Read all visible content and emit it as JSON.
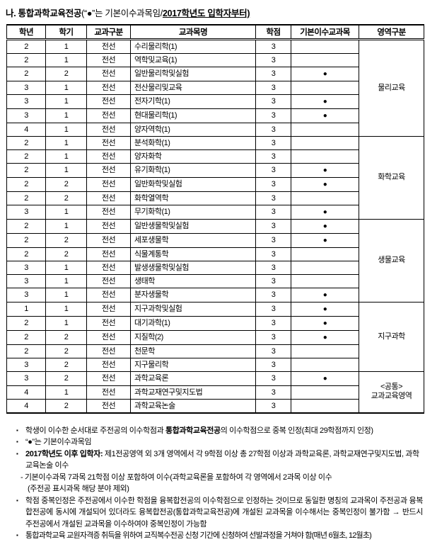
{
  "title": {
    "parts": [
      {
        "t": "나. 통합과학교육전공",
        "b": true
      },
      {
        "t": "(“●”는 기본이수과목임/"
      },
      {
        "t": "2017학년도 입학자부터)",
        "b": true,
        "u": true
      }
    ]
  },
  "table": {
    "dot": "●",
    "headers": [
      "학년",
      "학기",
      "교과구분",
      "교과목명",
      "학점",
      "기본이수교과목",
      "영역구분"
    ],
    "groups": [
      {
        "area": "물리교육",
        "rows": [
          [
            "2",
            "1",
            "전선",
            "수리물리학(1)",
            "3",
            false
          ],
          [
            "2",
            "1",
            "전선",
            "역학및교육(1)",
            "3",
            false
          ],
          [
            "2",
            "2",
            "전선",
            "일반물리학및실험",
            "3",
            true
          ],
          [
            "3",
            "1",
            "전선",
            "전산물리및교육",
            "3",
            false
          ],
          [
            "3",
            "1",
            "전선",
            "전자기학(1)",
            "3",
            true
          ],
          [
            "3",
            "1",
            "전선",
            "현대물리학(1)",
            "3",
            true
          ],
          [
            "4",
            "1",
            "전선",
            "양자역학(1)",
            "3",
            false
          ]
        ]
      },
      {
        "area": "화학교육",
        "rows": [
          [
            "2",
            "1",
            "전선",
            "분석화학(1)",
            "3",
            false
          ],
          [
            "2",
            "1",
            "전선",
            "양자화학",
            "3",
            false
          ],
          [
            "2",
            "1",
            "전선",
            "유기화학(1)",
            "3",
            true
          ],
          [
            "2",
            "2",
            "전선",
            "일반화학및실험",
            "3",
            true
          ],
          [
            "2",
            "2",
            "전선",
            "화학열역학",
            "3",
            false
          ],
          [
            "3",
            "1",
            "전선",
            "무기화학(1)",
            "3",
            true
          ]
        ]
      },
      {
        "area": "생물교육",
        "rows": [
          [
            "2",
            "1",
            "전선",
            "일반생물학및실험",
            "3",
            true
          ],
          [
            "2",
            "2",
            "전선",
            "세포생물학",
            "3",
            true
          ],
          [
            "2",
            "2",
            "전선",
            "식물계통학",
            "3",
            false
          ],
          [
            "3",
            "1",
            "전선",
            "발생생물학및실험",
            "3",
            false
          ],
          [
            "3",
            "1",
            "전선",
            "생태학",
            "3",
            false
          ],
          [
            "3",
            "1",
            "전선",
            "분자생물학",
            "3",
            true
          ]
        ]
      },
      {
        "area": "지구과학",
        "rows": [
          [
            "1",
            "1",
            "전선",
            "지구과학및실험",
            "3",
            true
          ],
          [
            "2",
            "1",
            "전선",
            "대기과학(1)",
            "3",
            true
          ],
          [
            "2",
            "2",
            "전선",
            "지질학(2)",
            "3",
            true
          ],
          [
            "2",
            "2",
            "전선",
            "천문학",
            "3",
            false
          ],
          [
            "3",
            "2",
            "전선",
            "지구물리학",
            "3",
            false
          ]
        ]
      },
      {
        "area": "<공통>\n교과교육영역",
        "rows": [
          [
            "3",
            "2",
            "전선",
            "과학교육론",
            "3",
            true
          ],
          [
            "4",
            "1",
            "전선",
            "과학교재연구및지도법",
            "3",
            false
          ],
          [
            "4",
            "2",
            "전선",
            "과학교육논술",
            "3",
            false
          ]
        ]
      }
    ]
  },
  "notes": [
    {
      "marker": "▪",
      "parts": [
        {
          "t": "학생이 이수한 순서대로 주전공의 이수학점과 "
        },
        {
          "t": "통합과학교육전공",
          "b": true
        },
        {
          "t": "의 이수학점으로 중복 인정(최대 29학점까지 인정)"
        }
      ]
    },
    {
      "marker": "▪",
      "parts": [
        {
          "t": "“●”는 기본이수과목임"
        }
      ]
    },
    {
      "marker": "▪",
      "parts": [
        {
          "t": "2017학년도 이후 입학자:",
          "b": true
        },
        {
          "t": " 제1전공영역 외 3개 영역에서 각 9학점 이상 총 27학점 이상과 과학교육론, 과학교재연구및지도법, 과학교육논술 이수"
        }
      ]
    },
    {
      "marker": "",
      "style": "sub1",
      "parts": [
        {
          "t": "- 기본이수과목 7과목 21학점 이상 포함하여 이수(과학교육론을 포함하여 각 영역에서 2과목 이상 이수"
        }
      ]
    },
    {
      "marker": "",
      "style": "sub2",
      "parts": [
        {
          "t": "(주전공 표시과목 해당 분야 제외)"
        }
      ]
    },
    {
      "marker": "▪",
      "style": "justify",
      "parts": [
        {
          "t": "학점 중복인정은 주전공에서 이수한 학점을 융복합전공의 이수학점으로 인정하는 것이므로 동일한 명칭의 교과목이 주전공과 융복합전공에 동시에 개설되어 있더라도 융복합전공(통합과학교육전공)에 개설된 교과목을 이수해서는 중복인정이 불가함 → 반드시 주전공에서 개설된 교과목을 이수하여야 중복인정이 가능함"
        }
      ]
    },
    {
      "marker": "▪",
      "style": "condensed",
      "parts": [
        {
          "t": "통합과학교육 교원자격증 취득을 위하여 교직복수전공 신청 기간에 신청하여 선발과정을 거쳐야 함(매년 6월초, 12월초)"
        }
      ]
    }
  ]
}
